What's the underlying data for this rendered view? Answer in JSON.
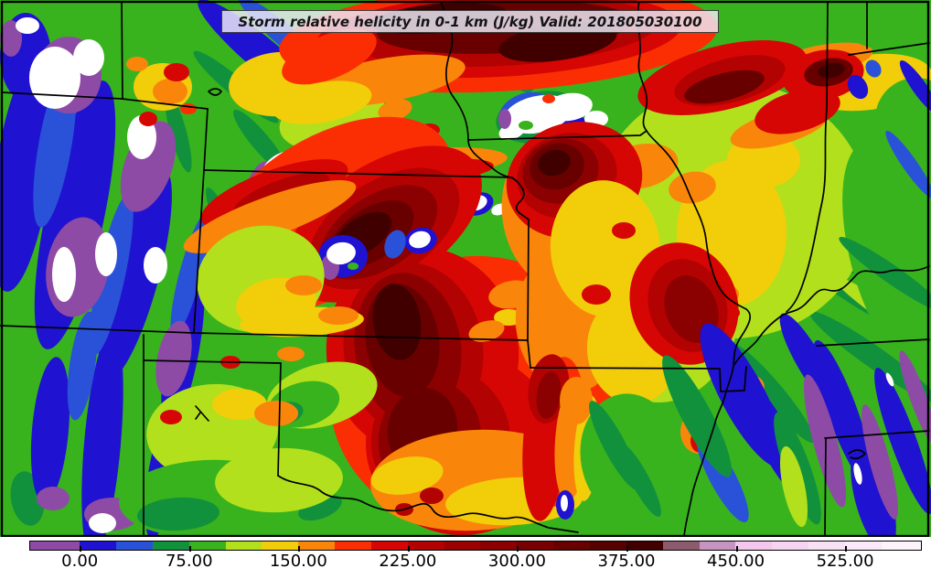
{
  "figure": {
    "title": "Storm relative helicity in 0-1 km (J/kg) Valid: 201805030100",
    "field_name": "Storm relative helicity in 0-1 km",
    "units": "J/kg",
    "valid_time": "201805030100"
  },
  "colorbar": {
    "min": -34,
    "max": 577,
    "orientation": "horizontal",
    "tick_labels": [
      "0.00",
      "75.00",
      "150.00",
      "225.00",
      "300.00",
      "375.00",
      "450.00",
      "525.00"
    ],
    "tick_values": [
      0,
      75,
      150,
      225,
      300,
      375,
      450,
      525
    ],
    "segments": [
      {
        "from": -34,
        "to": 0,
        "color": "#8e4ba5"
      },
      {
        "from": 0,
        "to": 25,
        "color": "#2012d1"
      },
      {
        "from": 25,
        "to": 50,
        "color": "#2a52d8"
      },
      {
        "from": 50,
        "to": 75,
        "color": "#12913d"
      },
      {
        "from": 75,
        "to": 100,
        "color": "#38b31e"
      },
      {
        "from": 100,
        "to": 125,
        "color": "#b2e01c"
      },
      {
        "from": 125,
        "to": 150,
        "color": "#f2cd0a"
      },
      {
        "from": 150,
        "to": 175,
        "color": "#f9860a"
      },
      {
        "from": 175,
        "to": 200,
        "color": "#fb2e03"
      },
      {
        "from": 200,
        "to": 225,
        "color": "#d50603"
      },
      {
        "from": 225,
        "to": 250,
        "color": "#b20201"
      },
      {
        "from": 250,
        "to": 275,
        "color": "#9a0100"
      },
      {
        "from": 275,
        "to": 300,
        "color": "#8b0000"
      },
      {
        "from": 300,
        "to": 325,
        "color": "#790000"
      },
      {
        "from": 325,
        "to": 350,
        "color": "#680000"
      },
      {
        "from": 350,
        "to": 375,
        "color": "#560000"
      },
      {
        "from": 375,
        "to": 400,
        "color": "#400000"
      },
      {
        "from": 400,
        "to": 425,
        "color": "#8d5a6e"
      },
      {
        "from": 425,
        "to": 450,
        "color": "#c793c1"
      },
      {
        "from": 450,
        "to": 475,
        "color": "#f3c7ee"
      },
      {
        "from": 475,
        "to": 500,
        "color": "#f5d3f1"
      },
      {
        "from": 500,
        "to": 525,
        "color": "#f8e0f5"
      },
      {
        "from": 525,
        "to": 550,
        "color": "#fae9f8"
      },
      {
        "from": 550,
        "to": 577,
        "color": "#fdf3fb"
      }
    ]
  },
  "chart_data": {
    "type": "heatmap",
    "title": "Storm relative helicity in 0-1 km (J/kg) Valid: 201805030100",
    "units": "J/kg",
    "legend_position": "bottom",
    "colorbar_ticks": [
      0,
      75,
      150,
      225,
      300,
      375,
      450,
      525
    ],
    "value_range_shown": [
      -34,
      577
    ]
  }
}
